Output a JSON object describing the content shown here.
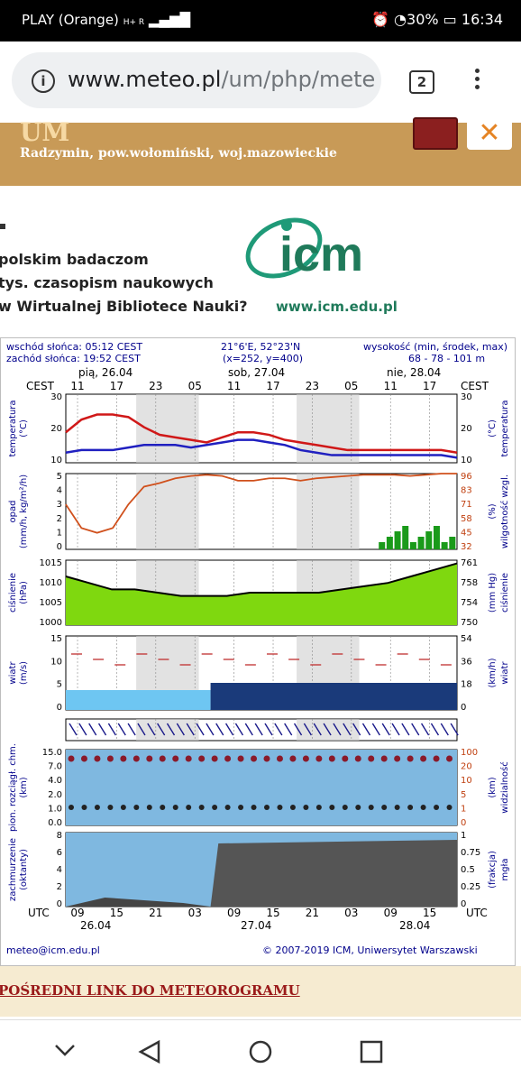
{
  "status_bar": {
    "carrier": "PLAY (Orange)",
    "network": "H+ R",
    "battery": "30%",
    "time": "16:34"
  },
  "browser": {
    "url_host": "www.meteo.pl",
    "url_path": "/um/php/mete",
    "tab_count": "2"
  },
  "banner": {
    "model": "UM",
    "location": "Radzymin, pow.wołomiński, woj.mazowieckie"
  },
  "ad": {
    "line1": "polskim badaczom",
    "line2": "tys. czasopism naukowych",
    "line3": "w Wirtualnej Bibliotece Nauki?",
    "logo_text": "icm",
    "site": "www.icm.edu.pl"
  },
  "meteogram": {
    "sunrise": "wschód słońca: 05:12 CEST",
    "sunset": "zachód słońca: 19:52 CEST",
    "coords": "21°6'E, 52°23'N",
    "grid": "(x=252, y=400)",
    "height_label": "wysokość (min, środek, max)",
    "height_values": "68 - 78 - 101 m",
    "cest": "CEST",
    "utc": "UTC",
    "days": [
      "pią, 26.04",
      "sob, 27.04",
      "nie, 28.04"
    ],
    "days_bottom": [
      "26.04",
      "27.04",
      "28.04"
    ],
    "top_hours": [
      "11",
      "17",
      "23",
      "05",
      "11",
      "17",
      "23",
      "05",
      "11",
      "17"
    ],
    "bottom_hours": [
      "09",
      "15",
      "21",
      "03",
      "09",
      "15",
      "21",
      "03",
      "09",
      "15"
    ],
    "panels": [
      {
        "left_label": "temperatura",
        "left_unit": "(°C)",
        "right_label": "temperatura",
        "right_unit": "(°C)",
        "left_ticks": [
          "30",
          "20",
          "10"
        ],
        "right_ticks": [
          "30",
          "20",
          "10"
        ]
      },
      {
        "left_label": "opad",
        "left_unit": "(mm/h, kg/m²/h)",
        "right_label": "wilgotność wzgl.",
        "right_unit": "(%)",
        "left_ticks": [
          "5",
          "4",
          "3",
          "2",
          "1",
          "0"
        ],
        "right_ticks": [
          "96",
          "83",
          "71",
          "58",
          "45",
          "32"
        ]
      },
      {
        "left_label": "ciśnienie",
        "left_unit": "(hPa)",
        "right_label": "ciśnienie",
        "right_unit": "(mm Hg)",
        "left_ticks": [
          "1015",
          "1010",
          "1005",
          "1000"
        ],
        "right_ticks": [
          "761",
          "758",
          "754",
          "750"
        ]
      },
      {
        "left_label": "wiatr",
        "left_unit": "(m/s)",
        "right_label": "wiatr",
        "right_unit": "(km/h)",
        "left_ticks": [
          "15",
          "10",
          "5",
          "0"
        ],
        "right_ticks": [
          "54",
          "36",
          "18",
          "0"
        ]
      },
      {
        "left_label": "",
        "left_unit": "",
        "right_label": "",
        "right_unit": "",
        "left_ticks": [],
        "right_ticks": []
      },
      {
        "left_label": "pion. rozciągł. chm.",
        "left_unit": "(km)",
        "right_label": "widzialność",
        "right_unit": "(km)",
        "left_ticks": [
          "15.0",
          "7.0",
          "4.0",
          "2.0",
          "1.0",
          "0.0"
        ],
        "right_ticks": [
          "100",
          "20",
          "10",
          "5",
          "1",
          "0"
        ]
      },
      {
        "left_label": "zachmurzenie",
        "left_unit": "(oktanty)",
        "right_label": "mgła",
        "right_unit": "(frakcja)",
        "left_ticks": [
          "8",
          "6",
          "4",
          "2",
          "0"
        ],
        "right_ticks": [
          "1",
          "0.75",
          "0.5",
          "0.25",
          "0"
        ]
      }
    ],
    "footer_email": "meteo@icm.edu.pl",
    "footer_copy": "© 2007-2019 ICM, Uniwersytet Warszawski"
  },
  "direct_link": "POŚREDNI LINK DO METEOROGRAMU",
  "colors": {
    "banner": "#c89a57",
    "night_shade": "#cfcfcf",
    "sky": "#6ec6f2",
    "green": "#7fd80f",
    "temp_red": "#d01818",
    "dew_blue": "#2020c0"
  }
}
